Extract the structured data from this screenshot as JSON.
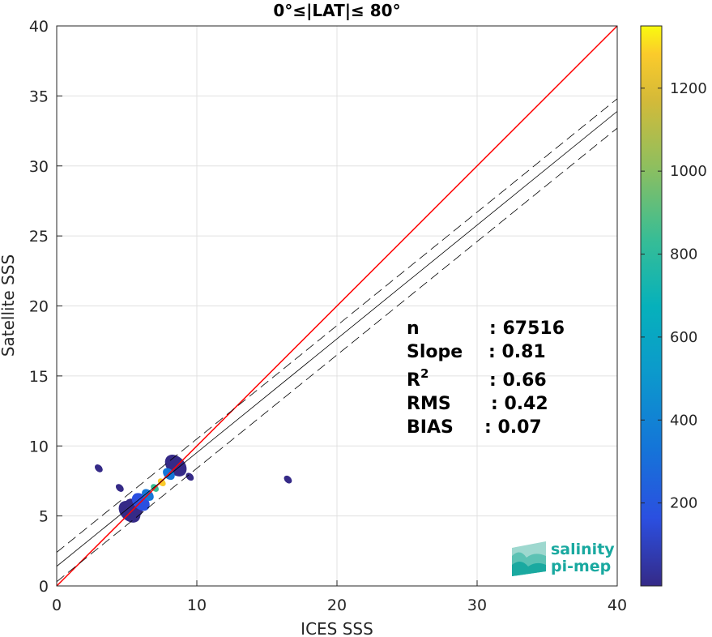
{
  "chart_data": {
    "type": "heatmap",
    "title": "0°≤|LAT|≤ 80°",
    "xlabel": "ICES SSS",
    "ylabel": "Satellite SSS",
    "xlim": [
      0,
      40
    ],
    "ylim": [
      0,
      40
    ],
    "x_ticks": [
      "0",
      "10",
      "20",
      "30",
      "40"
    ],
    "y_ticks": [
      "0",
      "5",
      "10",
      "15",
      "20",
      "25",
      "30",
      "35",
      "40"
    ],
    "grid": true,
    "colorbar": {
      "range": [
        0,
        1350
      ],
      "ticks": [
        "200",
        "400",
        "600",
        "800",
        "1000",
        "1200"
      ],
      "tick_values": [
        200,
        400,
        600,
        800,
        1000,
        1200
      ],
      "colormap": "parula"
    },
    "reference_line": {
      "label": "1:1",
      "color": "#ff0000",
      "x": [
        0,
        40
      ],
      "y": [
        0,
        40
      ]
    },
    "regression_line": {
      "x": [
        0,
        40
      ],
      "y": [
        1.4,
        33.9
      ],
      "color": "#000000"
    },
    "confidence_lines": [
      {
        "x": [
          0,
          40
        ],
        "y": [
          2.4,
          34.8
        ]
      },
      {
        "x": [
          0,
          40
        ],
        "y": [
          0.3,
          32.7
        ]
      }
    ],
    "density_clusters": [
      {
        "x": 7.5,
        "y": 7.4,
        "count": 1300
      },
      {
        "x": 7.0,
        "y": 7.0,
        "count": 900
      },
      {
        "x": 6.5,
        "y": 6.5,
        "count": 500
      },
      {
        "x": 8.0,
        "y": 8.0,
        "count": 400
      },
      {
        "x": 6.0,
        "y": 6.0,
        "count": 250
      },
      {
        "x": 5.5,
        "y": 5.6,
        "count": 120
      },
      {
        "x": 5.2,
        "y": 5.3,
        "count": 60
      },
      {
        "x": 8.5,
        "y": 8.6,
        "count": 80
      },
      {
        "x": 4.5,
        "y": 7.0,
        "count": 15
      },
      {
        "x": 9.5,
        "y": 7.8,
        "count": 15
      },
      {
        "x": 3.0,
        "y": 8.4,
        "count": 8
      },
      {
        "x": 16.5,
        "y": 7.6,
        "count": 5
      }
    ],
    "stats": {
      "labels": [
        "n",
        "Slope",
        "RMS",
        "BIAS"
      ],
      "values": [
        ": 67516",
        ": 0.81",
        ": 0.42",
        ": 0.07"
      ],
      "r2_label": "R",
      "r2_sup": "2",
      "r2_value": ": 0.66"
    }
  },
  "logo": {
    "line1": "salinity",
    "line2": "pi-mep"
  },
  "colors": {
    "reference": "#ff0000",
    "fit": "#000000",
    "grid": "#e0e0e0",
    "logo": "#1aa9a0"
  }
}
